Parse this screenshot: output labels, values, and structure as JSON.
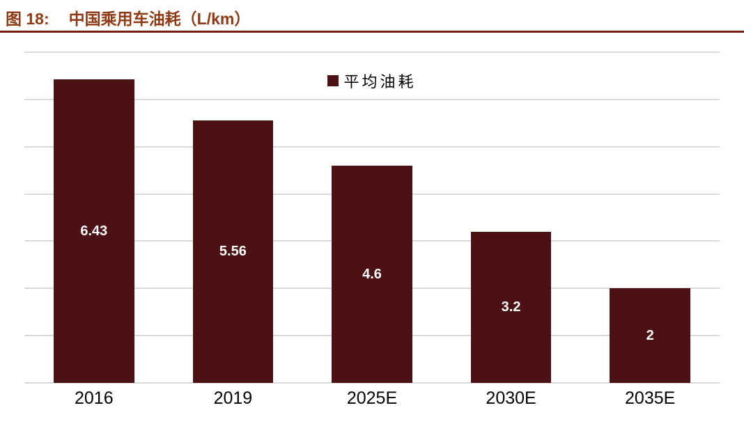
{
  "figure": {
    "label": "图 18:",
    "title": "中国乘用车油耗（L/km）"
  },
  "chart_data": {
    "type": "bar",
    "title": "中国乘用车油耗（L/km）",
    "categories": [
      "2016",
      "2019",
      "2025E",
      "2030E",
      "2035E"
    ],
    "series": [
      {
        "name": "平均油耗",
        "values": [
          6.43,
          5.56,
          4.6,
          3.2,
          2
        ],
        "value_labels": [
          "6.43",
          "5.56",
          "4.6",
          "3.2",
          "2"
        ]
      }
    ],
    "xlabel": "",
    "ylabel": "",
    "ylim": [
      0,
      7
    ],
    "grid_step": 1,
    "grid": true,
    "y_tick_labels_shown": false,
    "legend_position": "top-center"
  },
  "colors": {
    "bar_fill": "#4C1114",
    "value_label": "#ffffff",
    "title_text": "#8E3A14",
    "title_rule": "#7B1E14",
    "gridline": "#D9D9D9",
    "axis_label": "#000000",
    "background": "#ffffff"
  }
}
